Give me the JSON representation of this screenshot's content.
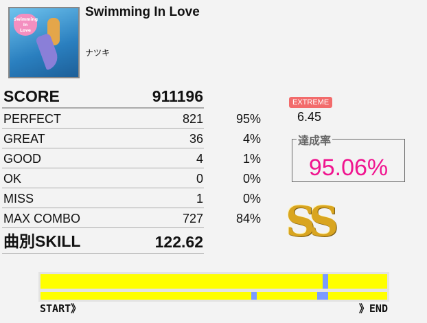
{
  "song": {
    "title": "Swimming In Love",
    "artist": "ナツキ",
    "jacket_text": "Swimming In Love"
  },
  "score": {
    "label": "SCORE",
    "value": "911196"
  },
  "judgements": [
    {
      "label": "PERFECT",
      "count": "821",
      "percent": "95%"
    },
    {
      "label": "GREAT",
      "count": "36",
      "percent": "4%"
    },
    {
      "label": "GOOD",
      "count": "4",
      "percent": "1%"
    },
    {
      "label": "OK",
      "count": "0",
      "percent": "0%"
    },
    {
      "label": "MISS",
      "count": "1",
      "percent": "0%"
    },
    {
      "label": "MAX COMBO",
      "count": "727",
      "percent": "84%"
    }
  ],
  "skill": {
    "label": "曲別SKILL",
    "value": "122.62"
  },
  "difficulty": {
    "label": "EXTREME",
    "level": "6.45",
    "color": "#f26b6b"
  },
  "achievement": {
    "label": "達成率",
    "value": "95.06%",
    "color": "#f0158f"
  },
  "rank": "SS",
  "gauge": {
    "start_label": "START》",
    "end_label": "》END",
    "top_markers": [
      [
        0.813,
        0.829
      ]
    ],
    "bottom_markers": [
      [
        0.608,
        0.624
      ],
      [
        0.798,
        0.829
      ]
    ],
    "fill_color": "#ffff00",
    "marker_color": "#7b9bff"
  }
}
